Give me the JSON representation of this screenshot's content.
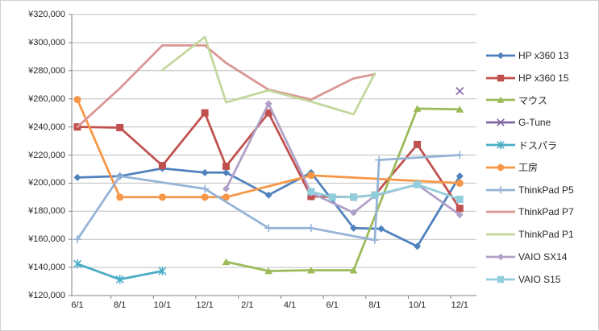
{
  "chart_data": {
    "type": "line",
    "title": "",
    "xlabel": "",
    "ylabel": "",
    "grid": true,
    "legend_position": "right",
    "x_axis": {
      "unit": "month",
      "months_span": 19,
      "tick_labels": [
        "6/1",
        "8/1",
        "10/1",
        "12/1",
        "2/1",
        "4/1",
        "6/1",
        "8/1",
        "10/1",
        "12/1"
      ],
      "tick_label_month_indices": [
        0,
        2,
        4,
        6,
        8,
        10,
        12,
        14,
        16,
        18
      ]
    },
    "y_axis": {
      "min": 120000,
      "max": 320000,
      "step": 20000,
      "currency": "JPY",
      "tick_format": "¥#,##0",
      "tick_labels": [
        "¥320,000",
        "¥300,000",
        "¥280,000",
        "¥260,000",
        "¥240,000",
        "¥220,000",
        "¥200,000",
        "¥180,000",
        "¥160,000",
        "¥140,000",
        "¥120,000"
      ]
    },
    "series": [
      {
        "name": "HP x360 13",
        "color": "#4F81BD",
        "marker": "diamond",
        "points": [
          [
            0,
            204000
          ],
          [
            2,
            205000
          ],
          [
            4,
            210500
          ],
          [
            6,
            207500
          ],
          [
            7,
            207500
          ],
          [
            9,
            191500
          ],
          [
            11,
            207500
          ],
          [
            13,
            168000
          ],
          [
            14.3,
            167500
          ],
          [
            16,
            155000
          ],
          [
            18,
            205000
          ]
        ]
      },
      {
        "name": "HP x360 15",
        "color": "#C0504D",
        "marker": "square",
        "points": [
          [
            0,
            240000
          ],
          [
            2,
            239500
          ],
          [
            4,
            212500
          ],
          [
            6,
            250000
          ],
          [
            7,
            212000
          ],
          [
            9,
            250000
          ],
          [
            11,
            190500
          ],
          [
            13,
            190000
          ],
          [
            14,
            191500
          ],
          [
            16,
            227500
          ],
          [
            18,
            182000
          ]
        ]
      },
      {
        "name": "マウス",
        "color": "#9BBB59",
        "marker": "triangle",
        "points": [
          [
            7,
            144000
          ],
          [
            9,
            137500
          ],
          [
            11,
            138000
          ],
          [
            13,
            138000
          ],
          [
            16,
            253000
          ],
          [
            18,
            252500
          ]
        ]
      },
      {
        "name": "G-Tune",
        "color": "#8064A2",
        "marker": "x",
        "points": [
          [
            18,
            265500
          ]
        ]
      },
      {
        "name": "ドスパラ",
        "color": "#4BACC6",
        "marker": "asterisk",
        "points": [
          [
            0,
            142500
          ],
          [
            2,
            131500
          ],
          [
            4,
            137500
          ]
        ]
      },
      {
        "name": "工房",
        "color": "#F79646",
        "marker": "circle",
        "points": [
          [
            0,
            259500
          ],
          [
            2,
            190000
          ],
          [
            4,
            190000
          ],
          [
            6,
            190000
          ],
          [
            7,
            190000
          ],
          [
            11,
            205500
          ],
          [
            18,
            200000
          ]
        ]
      },
      {
        "name": "ThinkPad P5",
        "color": "#95B3D7",
        "marker": "plus",
        "points": [
          [
            0,
            160000
          ],
          [
            2,
            205000
          ],
          [
            6,
            196000
          ],
          [
            9,
            168000
          ],
          [
            11,
            168000
          ],
          [
            14,
            159500
          ],
          [
            14.2,
            216500
          ],
          [
            18,
            220000
          ]
        ]
      },
      {
        "name": "ThinkPad P7",
        "color": "#D99694",
        "marker": "none",
        "points": [
          [
            0,
            240000
          ],
          [
            2,
            267500
          ],
          [
            4,
            298000
          ],
          [
            6,
            298000
          ],
          [
            7,
            285500
          ],
          [
            9,
            266500
          ],
          [
            11,
            259500
          ],
          [
            13,
            274500
          ],
          [
            14,
            277500
          ]
        ]
      },
      {
        "name": "ThinkPad P1",
        "color": "#C3D69B",
        "marker": "none",
        "points": [
          [
            4,
            280500
          ],
          [
            6,
            304000
          ],
          [
            7,
            257500
          ],
          [
            9,
            266000
          ],
          [
            11,
            258000
          ],
          [
            13,
            249000
          ],
          [
            14,
            278000
          ]
        ]
      },
      {
        "name": "VAIO SX14",
        "color": "#B1A0C7",
        "marker": "diamond",
        "points": [
          [
            7,
            196000
          ],
          [
            9,
            256500
          ],
          [
            11,
            193000
          ],
          [
            13,
            179000
          ],
          [
            14,
            191000
          ],
          [
            16,
            199000
          ],
          [
            18,
            177500
          ]
        ]
      },
      {
        "name": "VAIO S15",
        "color": "#92CDDC",
        "marker": "square",
        "points": [
          [
            11,
            194000
          ],
          [
            12,
            190000
          ],
          [
            13,
            190000
          ],
          [
            14,
            191500
          ],
          [
            16,
            199000
          ],
          [
            18,
            188500
          ]
        ]
      }
    ]
  }
}
